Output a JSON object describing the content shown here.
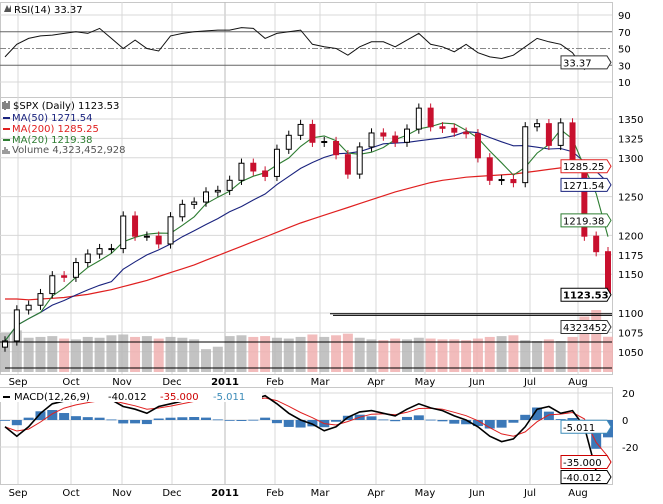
{
  "colors": {
    "up": "#000000",
    "down": "#c8102e",
    "ma50": "#1a237e",
    "ma200": "#e02020",
    "ma20": "#2e7d32",
    "macd": "#000000",
    "signal": "#e02020",
    "hist": "#3b78b8",
    "volume": "#b8b8b8",
    "volume_down": "#f0b0b0",
    "grid": "#d8d8d8"
  },
  "chart_data": [
    {
      "type": "line",
      "panel": "rsi",
      "title": "RSI(14) 33.37",
      "label_value": "33.37",
      "ylim": [
        0,
        100
      ],
      "ticks": [
        "90",
        "70",
        "50",
        "30",
        "10"
      ],
      "tick_values": [
        90,
        70,
        50,
        30,
        10
      ],
      "overbought": 70,
      "oversold": 30,
      "values": [
        40,
        55,
        62,
        65,
        66,
        68,
        70,
        68,
        74,
        62,
        50,
        60,
        50,
        47,
        65,
        68,
        70,
        71,
        72,
        72,
        75,
        74,
        62,
        68,
        70,
        72,
        55,
        52,
        50,
        42,
        52,
        58,
        58,
        52,
        60,
        68,
        55,
        52,
        46,
        55,
        45,
        40,
        38,
        42,
        52,
        62,
        58,
        55,
        45,
        25,
        40,
        33.37
      ]
    },
    {
      "type": "candlestick",
      "panel": "price",
      "title": "$SPX (Daily) 1123.53",
      "legend": [
        {
          "name": "MA(50) 1271.54",
          "color": "#1a237e"
        },
        {
          "name": "MA(200) 1285.25",
          "color": "#e02020"
        },
        {
          "name": "MA(20) 1219.38",
          "color": "#2e7d32"
        },
        {
          "name": "Volume 4,323,452,928",
          "color": "#666666"
        }
      ],
      "ylim": [
        1040,
        1375
      ],
      "ticks": [
        "1350",
        "1325",
        "1300",
        "1250",
        "1200",
        "1175",
        "1150",
        "1100",
        "1075",
        "1050"
      ],
      "tick_values": [
        1350,
        1325,
        1300,
        1250,
        1200,
        1175,
        1150,
        1100,
        1075,
        1050
      ],
      "x_labels": [
        "Sep",
        "Oct",
        "Nov",
        "Dec",
        "2011",
        "Feb",
        "Mar",
        "Apr",
        "May",
        "Jun",
        "Jul",
        "Aug"
      ],
      "closes": [
        1064,
        1104,
        1110,
        1125,
        1148,
        1146,
        1165,
        1176,
        1183,
        1183,
        1225,
        1199,
        1199,
        1189,
        1224,
        1240,
        1243,
        1256,
        1258,
        1271,
        1293,
        1283,
        1276,
        1311,
        1329,
        1343,
        1320,
        1321,
        1304,
        1279,
        1314,
        1332,
        1328,
        1320,
        1337,
        1364,
        1340,
        1338,
        1333,
        1331,
        1300,
        1271,
        1272,
        1268,
        1340,
        1344,
        1316,
        1345,
        1292,
        1199,
        1179,
        1123.53
      ],
      "ma200": [
        1118,
        1118,
        1117,
        1118,
        1119,
        1120,
        1122,
        1124,
        1127,
        1130,
        1134,
        1138,
        1142,
        1147,
        1152,
        1157,
        1162,
        1168,
        1174,
        1180,
        1186,
        1192,
        1198,
        1204,
        1210,
        1216,
        1221,
        1226,
        1231,
        1236,
        1241,
        1246,
        1251,
        1256,
        1260,
        1264,
        1268,
        1271,
        1273,
        1275,
        1276,
        1277,
        1278,
        1279,
        1281,
        1283,
        1285,
        1287,
        1289,
        1289,
        1287,
        1285.25
      ],
      "volume_billions": [
        4.8,
        5.1,
        4.2,
        4.3,
        4.4,
        4.1,
        4.0,
        4.3,
        4.2,
        4.5,
        4.6,
        4.3,
        4.4,
        4.1,
        4.3,
        4.2,
        4.0,
        2.8,
        3.1,
        4.4,
        4.5,
        4.3,
        4.4,
        4.2,
        4.1,
        4.3,
        4.6,
        4.3,
        4.5,
        4.7,
        4.2,
        4.0,
        3.9,
        4.1,
        4.0,
        4.2,
        4.1,
        4.0,
        4.0,
        3.9,
        4.1,
        4.3,
        4.4,
        4.5,
        3.9,
        3.8,
        4.0,
        3.8,
        4.3,
        6.8,
        7.6,
        4.32
      ],
      "badges": {
        "ma200": "1285.25",
        "ma50": "1271.54",
        "ma20": "1219.38",
        "close": "1123.53",
        "volume": "4323452"
      },
      "trendlines": [
        1099,
        1097
      ]
    },
    {
      "type": "line",
      "panel": "macd",
      "title": "MACD(12,26,9)",
      "macd_label": "-40.012",
      "signal_label": "-35.000",
      "hist_label": "-5.011",
      "ylim": [
        -45,
        22
      ],
      "ticks": [
        "20",
        "0",
        "-20"
      ],
      "tick_values": [
        20,
        0,
        -20
      ],
      "x_labels": [
        "Sep",
        "Oct",
        "Nov",
        "Dec",
        "2011",
        "Feb",
        "Mar",
        "Apr",
        "May",
        "Jun",
        "Jul",
        "Aug"
      ],
      "macd": [
        -5,
        -12,
        -5,
        5,
        12,
        14,
        14,
        15,
        16,
        15,
        10,
        8,
        5,
        10,
        12,
        14,
        16,
        17,
        16,
        15,
        14,
        15,
        18,
        12,
        5,
        0,
        -3,
        -8,
        -5,
        2,
        6,
        7,
        5,
        3,
        8,
        12,
        9,
        7,
        3,
        0,
        -5,
        -12,
        -16,
        -14,
        -5,
        8,
        10,
        5,
        7,
        -5,
        -38,
        -40.012
      ]
    }
  ]
}
